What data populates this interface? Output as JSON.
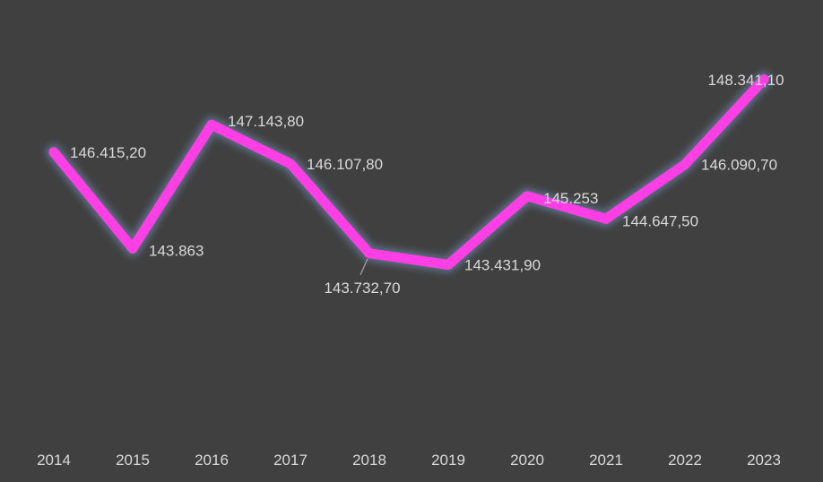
{
  "chart_data": {
    "type": "line",
    "title": "",
    "xlabel": "",
    "ylabel": "",
    "categories": [
      "2014",
      "2015",
      "2016",
      "2017",
      "2018",
      "2019",
      "2020",
      "2021",
      "2022",
      "2023"
    ],
    "series": [
      {
        "values": [
          146415.2,
          143863,
          147143.8,
          146107.8,
          143732.7,
          143431.9,
          145253,
          144647.5,
          146090.7,
          148341.1
        ],
        "labels": [
          "146.415,20",
          "143.863",
          "147.143,80",
          "146.107,80",
          "143.732,70",
          "143.431,90",
          "145.253",
          "144.647,50",
          "146.090,70",
          "148.341,10"
        ],
        "color": "#ff3ee6"
      }
    ],
    "ylim": [
      140000,
      149500
    ],
    "grid": false,
    "legend": "none",
    "colors": {
      "background": "#404040",
      "text": "#d9d9d9",
      "glow": "#8fc4ff"
    }
  }
}
